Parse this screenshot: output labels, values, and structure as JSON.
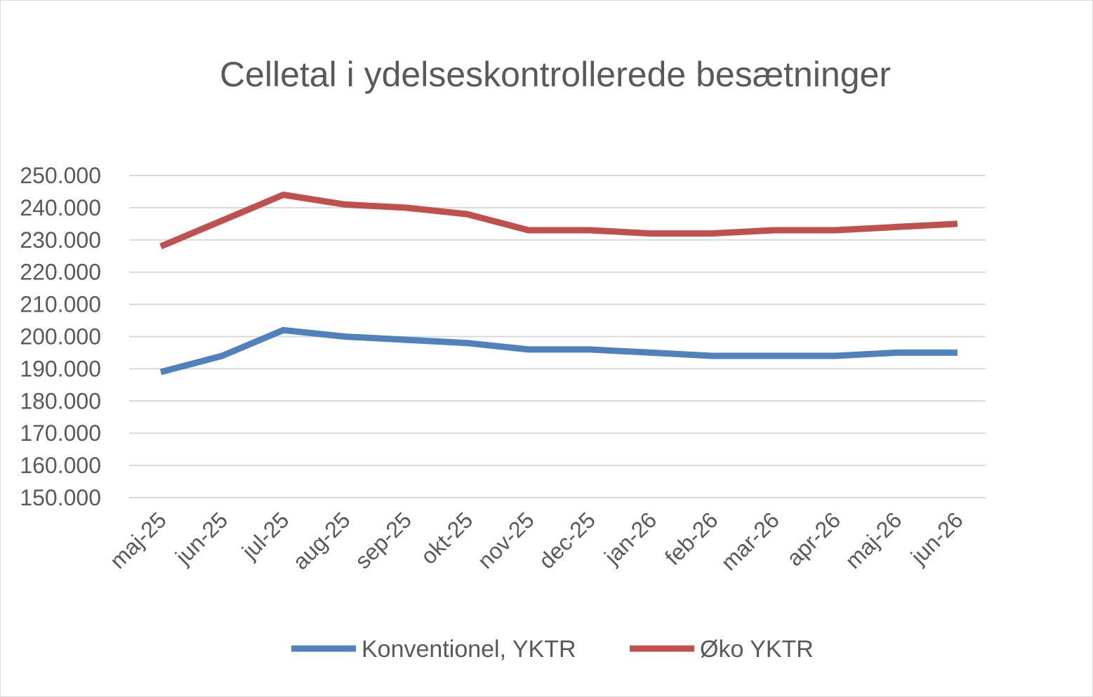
{
  "chart_data": {
    "type": "line",
    "title": "Celletal i ydelseskontrollerede besætninger",
    "xlabel": "",
    "ylabel": "",
    "categories": [
      "maj-25",
      "jun-25",
      "jul-25",
      "aug-25",
      "sep-25",
      "okt-25",
      "nov-25",
      "dec-25",
      "jan-26",
      "feb-26",
      "mar-26",
      "apr-26",
      "maj-26",
      "jun-26"
    ],
    "ylim": [
      150000,
      250000
    ],
    "yticks": [
      150000,
      160000,
      170000,
      180000,
      190000,
      200000,
      210000,
      220000,
      230000,
      240000,
      250000
    ],
    "ytick_labels": [
      "150.000",
      "160.000",
      "170.000",
      "180.000",
      "190.000",
      "200.000",
      "210.000",
      "220.000",
      "230.000",
      "240.000",
      "250.000"
    ],
    "grid": true,
    "legend_position": "bottom",
    "series": [
      {
        "name": "Konventionel, YKTR",
        "color": "#4f81bd",
        "values": [
          189000,
          194000,
          202000,
          200000,
          199000,
          198000,
          196000,
          196000,
          195000,
          194000,
          194000,
          194000,
          195000,
          195000
        ]
      },
      {
        "name": "Øko YKTR",
        "color": "#c0504d",
        "values": [
          228000,
          236000,
          244000,
          241000,
          240000,
          238000,
          233000,
          233000,
          232000,
          232000,
          233000,
          233000,
          234000,
          235000
        ]
      }
    ],
    "colors": {
      "gridline": "#d9d9d9",
      "text": "#595959",
      "frame": "#d9d9d9"
    }
  }
}
